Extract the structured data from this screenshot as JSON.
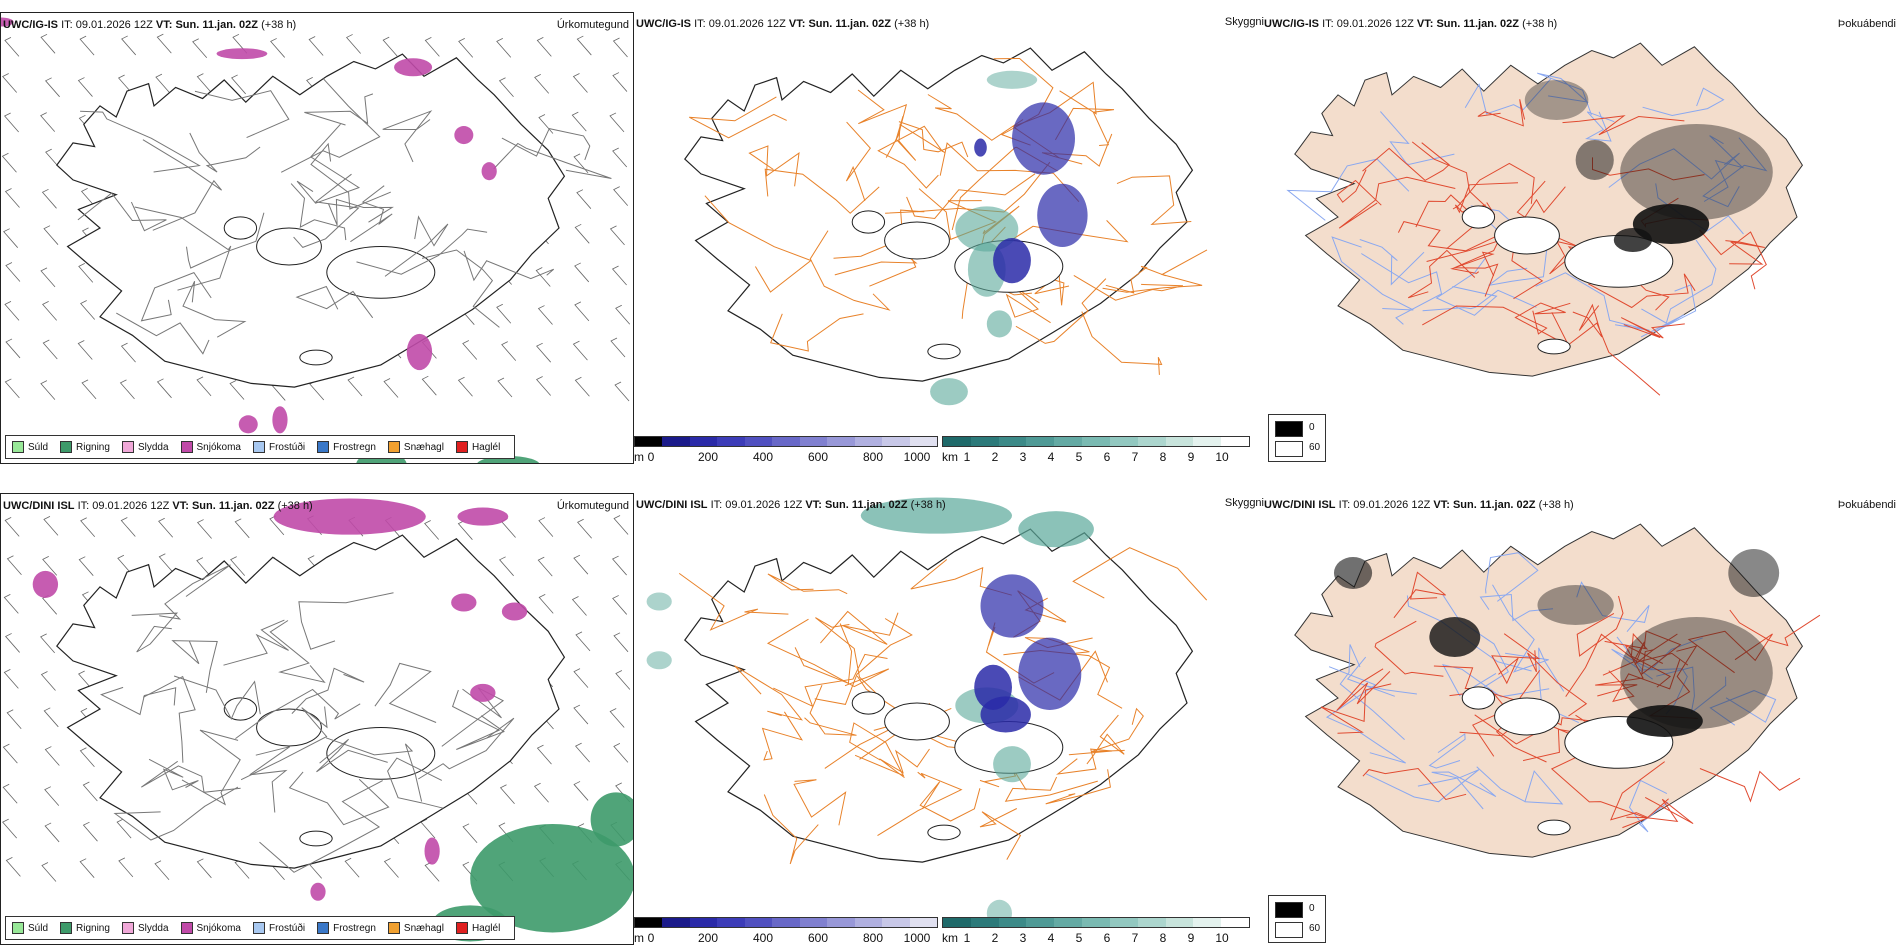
{
  "rows": [
    {
      "model": "UWC/IG-IS",
      "it_label": "IT:",
      "it_value": "09.01.2026 12Z",
      "vt_label": "VT:",
      "vt_value": "Sun. 11.jan. 02Z",
      "lead": "(+38 h)",
      "precip_title": "Úrkomutegund",
      "vis_title": "Skyggni",
      "fog_title": "Þokuábendi"
    },
    {
      "model": "UWC/DINI ISL",
      "it_label": "IT:",
      "it_value": "09.01.2026 12Z",
      "vt_label": "VT:",
      "vt_value": "Sun. 11.jan. 02Z",
      "lead": "(+38 h)",
      "precip_title": "Úrkomutegund",
      "vis_title": "Skyggni",
      "fog_title": "Þokuábendi"
    }
  ],
  "precip_legend": [
    {
      "label": "Súld",
      "color": "#98e898"
    },
    {
      "label": "Rigning",
      "color": "#3d9a6a"
    },
    {
      "label": "Slydda",
      "color": "#f0a8d8"
    },
    {
      "label": "Snjókoma",
      "color": "#c04aa8"
    },
    {
      "label": "Frostúði",
      "color": "#a8c8f0"
    },
    {
      "label": "Frostregn",
      "color": "#3a78c8"
    },
    {
      "label": "Snæhagl",
      "color": "#f0a030"
    },
    {
      "label": "Haglél",
      "color": "#e02020"
    }
  ],
  "cloud_base_scale": {
    "unit": "m",
    "ticks": [
      "0",
      "200",
      "400",
      "600",
      "800",
      "1000"
    ],
    "colors": [
      "#000000",
      "#1a1a8a",
      "#2a2aa8",
      "#3c3cb8",
      "#5050c0",
      "#6868c8",
      "#8080d0",
      "#9898d8",
      "#b0b0e0",
      "#c8c8e8",
      "#e0e0f0"
    ]
  },
  "visibility_scale": {
    "unit": "km",
    "ticks": [
      "1",
      "2",
      "3",
      "4",
      "5",
      "6",
      "7",
      "8",
      "9",
      "10"
    ],
    "colors": [
      "#1f6a6a",
      "#2c7a7a",
      "#3c8a88",
      "#4f9a96",
      "#64aaa4",
      "#7abab2",
      "#92c8c0",
      "#acd6ce",
      "#c8e4dc",
      "#e4f2ee",
      "#ffffff"
    ]
  },
  "fog_legend": {
    "high": "0",
    "low": "60"
  },
  "colors": {
    "land": "#f3ddcc",
    "road": "#e8822a",
    "road_red": "#e04a30",
    "river": "#8aa8f0",
    "snow": "#c04aa8",
    "rain": "#3d9a6a",
    "vis_teal": "#5aa89a",
    "cloud_blue": "#2a2aa8"
  }
}
